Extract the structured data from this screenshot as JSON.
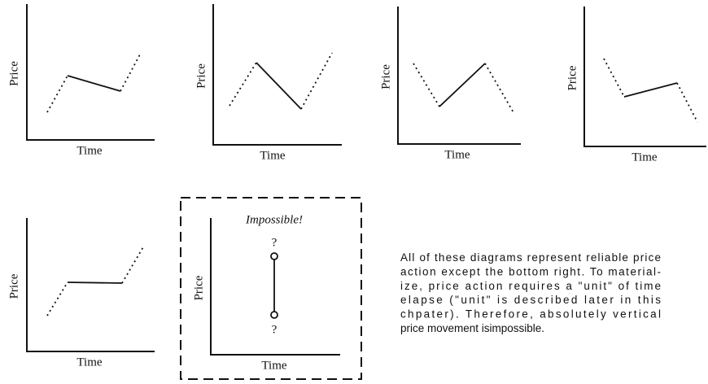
{
  "panels": [
    {
      "x_label": "Time",
      "y_label": "Price"
    },
    {
      "x_label": "Time",
      "y_label": "Price"
    },
    {
      "x_label": "Time",
      "y_label": "Price"
    },
    {
      "x_label": "Time",
      "y_label": "Price"
    },
    {
      "x_label": "Time",
      "y_label": "Price"
    },
    {
      "x_label": "Time",
      "y_label": "Price",
      "annotation": "Impossible!",
      "top_mark": "?",
      "bottom_mark": "?"
    }
  ],
  "caption": {
    "lines": [
      "All of these diagrams represent reliable price",
      "action except the bottom right. To material-",
      "ize, price action requires a \"unit\" of time",
      "elapse (\"unit\" is described later in this",
      "chpater). Therefore, absolutely vertical",
      "price movement isimpossible."
    ]
  }
}
